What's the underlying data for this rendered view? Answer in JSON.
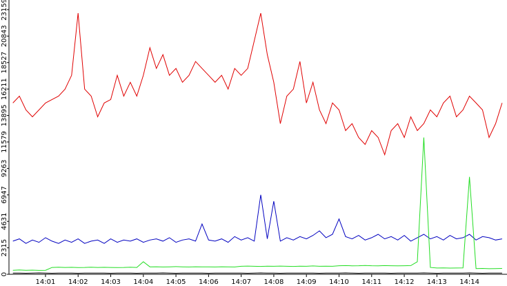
{
  "chart_data": {
    "type": "line",
    "x": [
      0,
      0.2,
      0.4,
      0.6,
      0.8,
      1,
      1.2,
      1.4,
      1.6,
      1.8,
      2,
      2.2,
      2.4,
      2.6,
      2.8,
      3,
      3.2,
      3.4,
      3.6,
      3.8,
      4,
      4.2,
      4.4,
      4.6,
      4.8,
      5,
      5.2,
      5.4,
      5.6,
      5.8,
      6,
      6.2,
      6.4,
      6.6,
      6.8,
      7,
      7.2,
      7.4,
      7.6,
      7.8,
      8,
      8.2,
      8.4,
      8.6,
      8.8,
      9,
      9.2,
      9.4,
      9.6,
      9.8,
      10,
      10.2,
      10.4,
      10.6,
      10.8,
      11,
      11.2,
      11.4,
      11.6,
      11.8,
      12,
      12.2,
      12.4,
      12.6,
      12.8,
      13,
      13.2,
      13.4,
      13.6,
      13.8,
      14,
      14.2,
      14.4,
      14.6,
      14.8,
      15
    ],
    "series": [
      {
        "color": "#e00000",
        "values": [
          14990,
          15590,
          14380,
          13780,
          14380,
          14990,
          15290,
          15590,
          16200,
          17410,
          22850,
          16200,
          15590,
          13780,
          14990,
          15290,
          17410,
          15590,
          16800,
          15590,
          17410,
          19820,
          18010,
          19220,
          17410,
          18010,
          16800,
          17410,
          18620,
          18010,
          17410,
          16800,
          17410,
          16200,
          18010,
          17410,
          18010,
          20430,
          22850,
          19220,
          16800,
          13180,
          15590,
          16200,
          18620,
          14990,
          16800,
          14380,
          13180,
          14990,
          14380,
          12570,
          13180,
          11970,
          11360,
          12570,
          11970,
          10460,
          12570,
          13180,
          11970,
          13780,
          12570,
          13180,
          14380,
          13780,
          14990,
          15590,
          13780,
          14380,
          15590,
          14990,
          14380,
          11970,
          13180,
          14990
        ]
      },
      {
        "color": "#0000c0",
        "values": [
          2900,
          3100,
          2700,
          3000,
          2800,
          3200,
          2900,
          2700,
          3000,
          2800,
          3100,
          2700,
          2900,
          3000,
          2700,
          3100,
          2800,
          3000,
          2900,
          3100,
          2800,
          3000,
          3100,
          2900,
          3200,
          2800,
          3000,
          3100,
          2900,
          4400,
          3000,
          2900,
          3100,
          2800,
          3300,
          3000,
          3200,
          2900,
          6950,
          3100,
          6400,
          2900,
          3200,
          3000,
          3300,
          3100,
          3400,
          3800,
          3200,
          3500,
          4840,
          3300,
          3100,
          3400,
          3000,
          3200,
          3500,
          3100,
          3300,
          3000,
          3400,
          2900,
          3200,
          3500,
          3100,
          3300,
          3000,
          3400,
          3100,
          3200,
          3500,
          3000,
          3300,
          3200,
          3000,
          3100
        ]
      },
      {
        "color": "#22dd22",
        "values": [
          350,
          380,
          350,
          360,
          340,
          350,
          600,
          620,
          600,
          610,
          590,
          600,
          620,
          600,
          610,
          600,
          590,
          600,
          620,
          600,
          1100,
          650,
          660,
          640,
          650,
          670,
          650,
          640,
          660,
          650,
          650,
          640,
          660,
          650,
          640,
          700,
          720,
          700,
          690,
          710,
          700,
          720,
          700,
          690,
          710,
          700,
          730,
          700,
          710,
          700,
          750,
          760,
          740,
          750,
          770,
          750,
          740,
          760,
          750,
          740,
          750,
          760,
          1100,
          11970,
          600,
          550,
          560,
          540,
          550,
          560,
          8520,
          500,
          510,
          490,
          500,
          510
        ]
      },
      {
        "color": "#000000",
        "values": [
          100,
          110,
          90,
          100,
          120,
          100,
          90,
          100,
          110,
          100,
          90,
          100,
          110,
          100,
          100,
          90,
          110,
          100,
          100,
          90,
          110,
          100,
          100,
          120,
          100,
          90,
          100,
          110,
          100,
          100,
          90,
          110,
          100,
          100,
          110,
          100,
          90,
          100,
          120,
          100,
          100,
          90,
          110,
          100,
          100,
          110,
          100,
          90,
          100,
          110,
          100,
          120,
          100,
          90,
          100,
          110,
          100,
          100,
          90,
          110,
          100,
          100,
          110,
          120,
          100,
          90,
          100,
          110,
          100,
          100,
          120,
          100,
          90,
          100,
          110,
          100
        ]
      }
    ],
    "xlim": [
      -0.12,
      15.15
    ],
    "xticks": [
      {
        "value": 1,
        "label": "14:01"
      },
      {
        "value": 2,
        "label": "14:02"
      },
      {
        "value": 3,
        "label": "14:03"
      },
      {
        "value": 4,
        "label": "14:04"
      },
      {
        "value": 5,
        "label": "14:05"
      },
      {
        "value": 6,
        "label": "14:06"
      },
      {
        "value": 7,
        "label": "14:07"
      },
      {
        "value": 8,
        "label": "14:08"
      },
      {
        "value": 9,
        "label": "14:09"
      },
      {
        "value": 10,
        "label": "14:10"
      },
      {
        "value": 11,
        "label": "14:11"
      },
      {
        "value": 12,
        "label": "14:12"
      },
      {
        "value": 13,
        "label": "14:13"
      },
      {
        "value": 14,
        "label": "14:14"
      }
    ],
    "ylim": [
      0,
      24000
    ],
    "yticks": [
      0,
      2315,
      4631,
      6947,
      9263,
      11579,
      13895,
      16211,
      18527,
      20843,
      23159
    ]
  }
}
